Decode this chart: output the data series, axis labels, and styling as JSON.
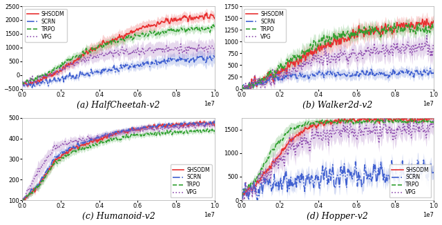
{
  "subplots": [
    {
      "title": "(a) HalfCheetah-v2",
      "xlim": [
        0,
        10000000.0
      ],
      "ylim": [
        -500,
        2500
      ],
      "yticks": [
        -500,
        0,
        500,
        1000,
        1500,
        2000,
        2500
      ],
      "legend_loc": "upper left",
      "curves": [
        {
          "label": "SHSODM",
          "color": "#e83030",
          "style": "-",
          "lw": 1.2,
          "mean": [
            -350,
            -200,
            50,
            400,
            800,
            1100,
            1350,
            1600,
            1800,
            1950,
            2050,
            2120,
            2150
          ],
          "std": [
            60,
            70,
            100,
            150,
            200,
            220,
            220,
            210,
            200,
            185,
            175,
            165,
            160
          ],
          "noise": 80
        },
        {
          "label": "SCRN",
          "color": "#4060d0",
          "style": "-.",
          "lw": 1.2,
          "mean": [
            -350,
            -300,
            -200,
            -80,
            50,
            150,
            250,
            330,
            410,
            480,
            540,
            590,
            630
          ],
          "std": [
            60,
            70,
            80,
            90,
            100,
            110,
            130,
            150,
            170,
            190,
            210,
            230,
            250
          ],
          "noise": 100
        },
        {
          "label": "TRPO",
          "color": "#30a030",
          "style": "--",
          "lw": 1.2,
          "mean": [
            -350,
            -100,
            200,
            550,
            850,
            1080,
            1250,
            1400,
            1510,
            1580,
            1630,
            1660,
            1680
          ],
          "std": [
            60,
            70,
            100,
            140,
            160,
            160,
            155,
            148,
            142,
            138,
            134,
            130,
            128
          ],
          "noise": 80
        },
        {
          "label": "VPG",
          "color": "#9050b0",
          "style": ":",
          "lw": 1.2,
          "mean": [
            -350,
            -150,
            100,
            350,
            580,
            720,
            820,
            880,
            910,
            930,
            945,
            950,
            955
          ],
          "std": [
            60,
            70,
            100,
            140,
            180,
            200,
            220,
            240,
            250,
            258,
            264,
            268,
            270
          ],
          "noise": 120
        }
      ]
    },
    {
      "title": "(b) Walker2d-v2",
      "xlim": [
        0,
        10000000.0
      ],
      "ylim": [
        0,
        1750
      ],
      "yticks": [
        0,
        250,
        500,
        750,
        1000,
        1250,
        1500,
        1750
      ],
      "legend_loc": "upper left",
      "curves": [
        {
          "label": "SHSODM",
          "color": "#e83030",
          "style": "-",
          "lw": 1.2,
          "mean": [
            0,
            150,
            280,
            480,
            700,
            870,
            1020,
            1120,
            1210,
            1280,
            1330,
            1360,
            1390
          ],
          "std": [
            20,
            60,
            90,
            120,
            150,
            165,
            170,
            165,
            158,
            152,
            147,
            143,
            140
          ],
          "noise": 100
        },
        {
          "label": "SCRN",
          "color": "#4060d0",
          "style": "-.",
          "lw": 1.2,
          "mean": [
            0,
            120,
            220,
            260,
            280,
            295,
            308,
            315,
            322,
            328,
            334,
            340,
            345
          ],
          "std": [
            20,
            50,
            70,
            85,
            92,
            96,
            98,
            99,
            99,
            99,
            99,
            99,
            99
          ],
          "noise": 60
        },
        {
          "label": "TRPO",
          "color": "#30a030",
          "style": "--",
          "lw": 1.2,
          "mean": [
            0,
            150,
            320,
            600,
            820,
            1000,
            1100,
            1170,
            1220,
            1250,
            1265,
            1272,
            1278
          ],
          "std": [
            20,
            70,
            110,
            145,
            158,
            158,
            152,
            147,
            142,
            138,
            135,
            132,
            130
          ],
          "noise": 90
        },
        {
          "label": "VPG",
          "color": "#9050b0",
          "style": ":",
          "lw": 1.2,
          "mean": [
            0,
            100,
            200,
            360,
            510,
            630,
            710,
            768,
            808,
            832,
            848,
            856,
            862
          ],
          "std": [
            20,
            50,
            85,
            120,
            145,
            163,
            174,
            181,
            186,
            190,
            193,
            196,
            198
          ],
          "noise": 130
        }
      ]
    },
    {
      "title": "(c) Humanoid-v2",
      "xlim": [
        0,
        10000000.0
      ],
      "ylim": [
        100,
        500
      ],
      "yticks": [
        100,
        200,
        300,
        400,
        500
      ],
      "legend_loc": "lower right",
      "curves": [
        {
          "label": "SHSODM",
          "color": "#e83030",
          "style": "-",
          "lw": 1.2,
          "mean": [
            100,
            170,
            290,
            345,
            375,
            405,
            428,
            445,
            457,
            464,
            469,
            472,
            474
          ],
          "std": [
            8,
            18,
            18,
            16,
            15,
            14,
            13,
            12,
            12,
            11,
            11,
            11,
            11
          ],
          "noise": 8
        },
        {
          "label": "SCRN",
          "color": "#4060d0",
          "style": "-.",
          "lw": 1.2,
          "mean": [
            100,
            175,
            305,
            355,
            384,
            410,
            432,
            447,
            458,
            464,
            469,
            472,
            474
          ],
          "std": [
            8,
            18,
            18,
            16,
            15,
            14,
            13,
            12,
            12,
            11,
            11,
            11,
            11
          ],
          "noise": 8
        },
        {
          "label": "TRPO",
          "color": "#30a030",
          "style": "--",
          "lw": 1.2,
          "mean": [
            100,
            165,
            280,
            330,
            358,
            382,
            400,
            414,
            424,
            430,
            433,
            436,
            438
          ],
          "std": [
            8,
            18,
            18,
            16,
            15,
            14,
            13,
            12,
            12,
            11,
            11,
            11,
            11
          ],
          "noise": 8
        },
        {
          "label": "VPG",
          "color": "#9050b0",
          "style": ":",
          "lw": 1.2,
          "mean": [
            100,
            240,
            355,
            383,
            396,
            412,
            428,
            440,
            449,
            455,
            459,
            461,
            463
          ],
          "std": [
            8,
            40,
            25,
            20,
            18,
            16,
            15,
            14,
            13,
            12,
            12,
            11,
            11
          ],
          "noise": 10
        }
      ]
    },
    {
      "title": "(d) Hopper-v2",
      "xlim": [
        0,
        10000000.0
      ],
      "ylim": [
        0,
        1750
      ],
      "yticks": [
        0,
        500,
        1000,
        1500
      ],
      "legend_loc": "lower right",
      "curves": [
        {
          "label": "SHSODM",
          "color": "#e83030",
          "style": "-",
          "lw": 1.2,
          "mean": [
            100,
            350,
            800,
            1250,
            1520,
            1640,
            1680,
            1700,
            1710,
            1720,
            1725,
            1728,
            1730
          ],
          "std": [
            30,
            60,
            100,
            120,
            100,
            70,
            55,
            48,
            44,
            40,
            38,
            36,
            35
          ],
          "noise": 50
        },
        {
          "label": "SCRN",
          "color": "#4060d0",
          "style": "-.",
          "lw": 1.2,
          "mean": [
            100,
            250,
            360,
            410,
            450,
            490,
            520,
            545,
            560,
            570,
            580,
            586,
            590
          ],
          "std": [
            30,
            80,
            120,
            150,
            160,
            165,
            165,
            163,
            160,
            157,
            154,
            151,
            149
          ],
          "noise": 180
        },
        {
          "label": "TRPO",
          "color": "#30a030",
          "style": "--",
          "lw": 1.2,
          "mean": [
            100,
            500,
            1100,
            1500,
            1620,
            1660,
            1670,
            1675,
            1676,
            1677,
            1678,
            1679,
            1680
          ],
          "std": [
            30,
            100,
            150,
            120,
            90,
            65,
            52,
            46,
            42,
            39,
            37,
            35,
            34
          ],
          "noise": 40
        },
        {
          "label": "VPG",
          "color": "#9050b0",
          "style": ":",
          "lw": 1.2,
          "mean": [
            100,
            350,
            750,
            1100,
            1280,
            1370,
            1420,
            1450,
            1468,
            1478,
            1485,
            1490,
            1494
          ],
          "std": [
            30,
            100,
            180,
            230,
            240,
            230,
            218,
            208,
            200,
            194,
            190,
            187,
            185
          ],
          "noise": 160
        }
      ]
    }
  ],
  "fig_bgcolor": "#ffffff",
  "ax_bgcolor": "#ffffff",
  "tick_fontsize": 6,
  "title_fontsize": 9,
  "legend_fontsize": 5.5
}
